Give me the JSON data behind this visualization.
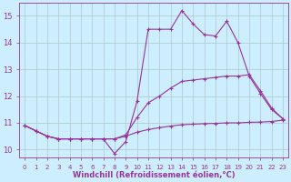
{
  "x": [
    0,
    1,
    2,
    3,
    4,
    5,
    6,
    7,
    8,
    9,
    10,
    11,
    12,
    13,
    14,
    15,
    16,
    17,
    18,
    19,
    20,
    21,
    22,
    23
  ],
  "line1": [
    10.9,
    10.7,
    10.5,
    10.4,
    10.4,
    10.4,
    10.4,
    10.4,
    9.85,
    10.3,
    11.8,
    14.5,
    14.5,
    14.5,
    15.2,
    14.7,
    14.3,
    14.25,
    14.8,
    14.0,
    12.75,
    12.1,
    11.5,
    11.15
  ],
  "line2": [
    10.9,
    10.7,
    10.5,
    10.4,
    10.4,
    10.4,
    10.4,
    10.4,
    10.4,
    10.55,
    11.2,
    11.75,
    12.0,
    12.3,
    12.55,
    12.6,
    12.65,
    12.7,
    12.75,
    12.75,
    12.8,
    12.2,
    11.55,
    11.15
  ],
  "line3": [
    10.9,
    10.7,
    10.5,
    10.4,
    10.4,
    10.4,
    10.4,
    10.4,
    10.4,
    10.5,
    10.65,
    10.75,
    10.82,
    10.88,
    10.93,
    10.95,
    10.97,
    10.98,
    11.0,
    11.0,
    11.02,
    11.03,
    11.05,
    11.1
  ],
  "color": "#993399",
  "bg_color": "#cceeff",
  "ylabel_vals": [
    10,
    11,
    12,
    13,
    14,
    15
  ],
  "xlabel": "Windchill (Refroidissement éolien,°C)",
  "ylim": [
    9.7,
    15.5
  ],
  "xlim": [
    -0.5,
    23.5
  ],
  "grid_color": "#b0c8c8",
  "marker": "+",
  "markersize": 3.5,
  "linewidth": 0.8,
  "font_color": "#993399",
  "tick_label_size": 5.0,
  "xlabel_size": 6.0
}
